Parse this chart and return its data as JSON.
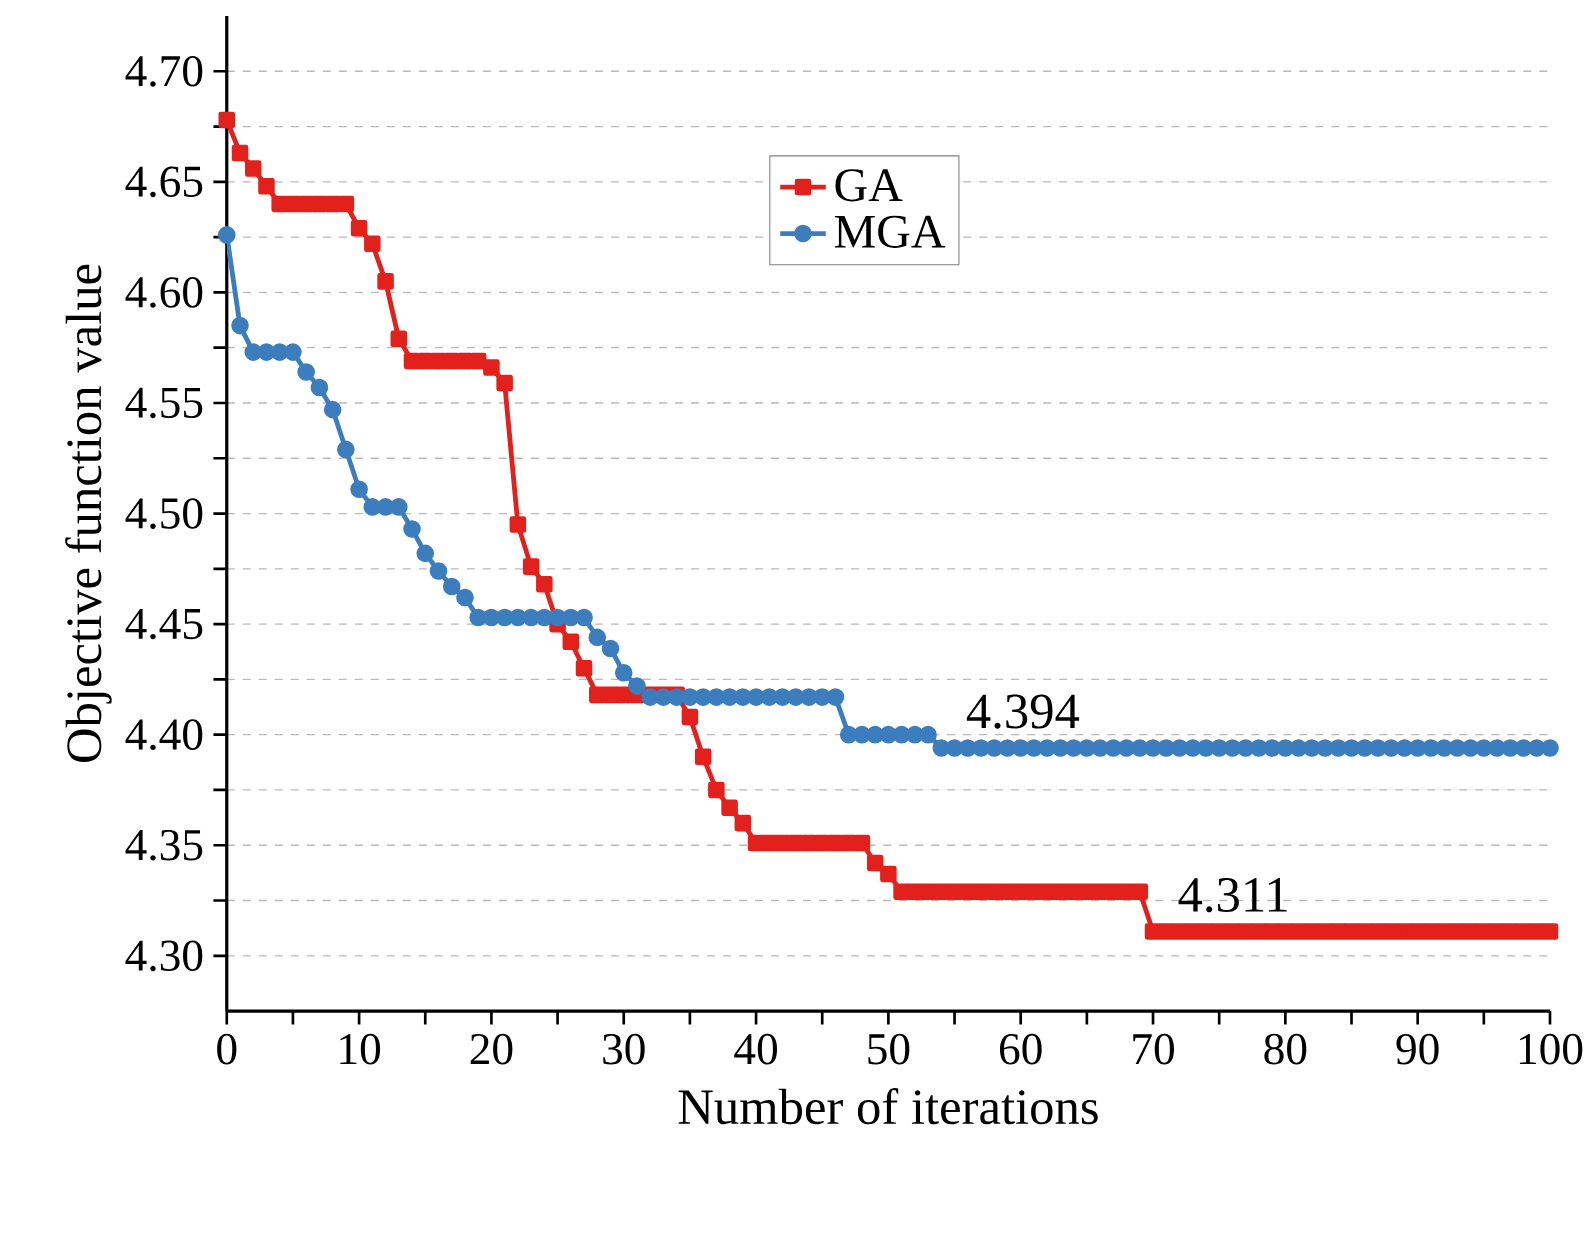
{
  "chart_data": {
    "type": "line",
    "xlabel": "Number of iterations",
    "ylabel": "Objective function value",
    "x": [
      0,
      1,
      2,
      3,
      4,
      5,
      6,
      7,
      8,
      9,
      10,
      11,
      12,
      13,
      14,
      15,
      16,
      17,
      18,
      19,
      20,
      21,
      22,
      23,
      24,
      25,
      26,
      27,
      28,
      29,
      30,
      31,
      32,
      33,
      34,
      35,
      36,
      37,
      38,
      39,
      40,
      41,
      42,
      43,
      44,
      45,
      46,
      47,
      48,
      49,
      50,
      51,
      52,
      53,
      54,
      55,
      56,
      57,
      58,
      59,
      60,
      61,
      62,
      63,
      64,
      65,
      66,
      67,
      68,
      69,
      70,
      71,
      72,
      73,
      74,
      75,
      76,
      77,
      78,
      79,
      80,
      81,
      82,
      83,
      84,
      85,
      86,
      87,
      88,
      89,
      90,
      91,
      92,
      93,
      94,
      95,
      96,
      97,
      98,
      99,
      100
    ],
    "series": [
      {
        "name": "GA",
        "color": "#e3211c",
        "marker": "square",
        "values": [
          4.678,
          4.663,
          4.656,
          4.648,
          4.64,
          4.64,
          4.64,
          4.64,
          4.64,
          4.64,
          4.629,
          4.622,
          4.605,
          4.579,
          4.569,
          4.569,
          4.569,
          4.569,
          4.569,
          4.569,
          4.566,
          4.559,
          4.495,
          4.476,
          4.468,
          4.45,
          4.442,
          4.43,
          4.418,
          4.418,
          4.418,
          4.418,
          4.418,
          4.418,
          4.418,
          4.408,
          4.39,
          4.375,
          4.367,
          4.36,
          4.351,
          4.351,
          4.351,
          4.351,
          4.351,
          4.351,
          4.351,
          4.351,
          4.351,
          4.342,
          4.337,
          4.329,
          4.329,
          4.329,
          4.329,
          4.329,
          4.329,
          4.329,
          4.329,
          4.329,
          4.329,
          4.329,
          4.329,
          4.329,
          4.329,
          4.329,
          4.329,
          4.329,
          4.329,
          4.329,
          4.311,
          4.311,
          4.311,
          4.311,
          4.311,
          4.311,
          4.311,
          4.311,
          4.311,
          4.311,
          4.311,
          4.311,
          4.311,
          4.311,
          4.311,
          4.311,
          4.311,
          4.311,
          4.311,
          4.311,
          4.311,
          4.311,
          4.311,
          4.311,
          4.311,
          4.311,
          4.311,
          4.311,
          4.311,
          4.311,
          4.311
        ]
      },
      {
        "name": "MGA",
        "color": "#3b7dbd",
        "marker": "circle",
        "values": [
          4.626,
          4.585,
          4.573,
          4.573,
          4.573,
          4.573,
          4.564,
          4.557,
          4.547,
          4.529,
          4.511,
          4.503,
          4.503,
          4.503,
          4.493,
          4.482,
          4.474,
          4.467,
          4.462,
          4.453,
          4.453,
          4.453,
          4.453,
          4.453,
          4.453,
          4.453,
          4.453,
          4.453,
          4.444,
          4.439,
          4.428,
          4.422,
          4.417,
          4.417,
          4.417,
          4.417,
          4.417,
          4.417,
          4.417,
          4.417,
          4.417,
          4.417,
          4.417,
          4.417,
          4.417,
          4.417,
          4.417,
          4.4,
          4.4,
          4.4,
          4.4,
          4.4,
          4.4,
          4.4,
          4.394,
          4.394,
          4.394,
          4.394,
          4.394,
          4.394,
          4.394,
          4.394,
          4.394,
          4.394,
          4.394,
          4.394,
          4.394,
          4.394,
          4.394,
          4.394,
          4.394,
          4.394,
          4.394,
          4.394,
          4.394,
          4.394,
          4.394,
          4.394,
          4.394,
          4.394,
          4.394,
          4.394,
          4.394,
          4.394,
          4.394,
          4.394,
          4.394,
          4.394,
          4.394,
          4.394,
          4.394,
          4.394,
          4.394,
          4.394,
          4.394,
          4.394,
          4.394,
          4.394,
          4.394,
          4.394,
          4.394
        ]
      }
    ],
    "xlim": [
      0,
      100
    ],
    "xticks": [
      0,
      {
        "value": 5,
        "label": null
      },
      10,
      {
        "value": 15,
        "label": null
      },
      20,
      {
        "value": 25,
        "label": null
      },
      30,
      {
        "value": 35,
        "label": null
      },
      40,
      {
        "value": 45,
        "label": null
      },
      50,
      {
        "value": 55,
        "label": null
      },
      60,
      {
        "value": 65,
        "label": null
      },
      70,
      {
        "value": 75,
        "label": null
      },
      80,
      {
        "value": 85,
        "label": null
      },
      90,
      {
        "value": 95,
        "label": null
      },
      100
    ],
    "ylim": [
      4.275,
      4.725
    ],
    "yticks": [
      {
        "value": 4.3,
        "label": "4.30"
      },
      {
        "value": 4.325,
        "label": null
      },
      {
        "value": 4.35,
        "label": "4.35"
      },
      {
        "value": 4.375,
        "label": null
      },
      {
        "value": 4.4,
        "label": "4.40"
      },
      {
        "value": 4.425,
        "label": null
      },
      {
        "value": 4.45,
        "label": "4.45"
      },
      {
        "value": 4.475,
        "label": null
      },
      {
        "value": 4.5,
        "label": "4.50"
      },
      {
        "value": 4.525,
        "label": null
      },
      {
        "value": 4.55,
        "label": "4.55"
      },
      {
        "value": 4.575,
        "label": null
      },
      {
        "value": 4.6,
        "label": "4.60"
      },
      {
        "value": 4.625,
        "label": null
      },
      {
        "value": 4.65,
        "label": "4.65"
      },
      {
        "value": 4.675,
        "label": null
      },
      {
        "value": 4.7,
        "label": "4.70"
      }
    ],
    "grid": "y",
    "legend": "top",
    "line_style": "solid",
    "annotations": [
      {
        "text": "4.394",
        "x": 54,
        "y": 4.394
      },
      {
        "text": "4.311",
        "x": 70,
        "y": 4.311
      }
    ]
  }
}
